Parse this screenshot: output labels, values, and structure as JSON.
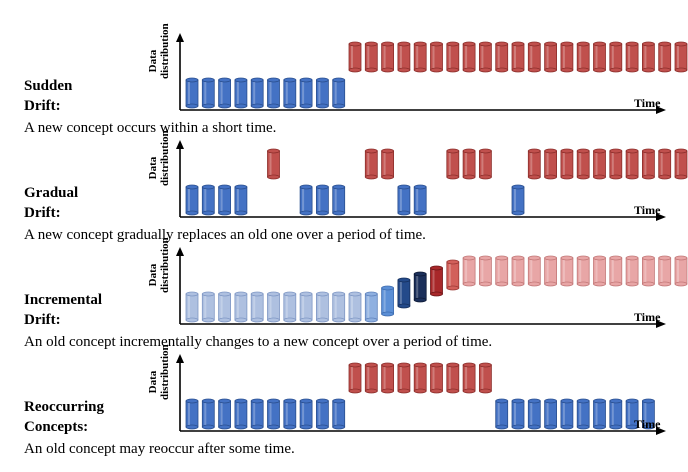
{
  "axis": {
    "ylabel_line1": "Data",
    "ylabel_line2": "distribution",
    "xlabel": "Time"
  },
  "colors": {
    "blue": "#4472c4",
    "blue_dark": "#2a4f8f",
    "red": "#c0504d",
    "red_dark": "#8c2e2b",
    "light_blue": "#aec0e0",
    "mid_blue1": "#8fb0e0",
    "mid_blue2": "#5b8fd6",
    "navy1": "#244a8a",
    "navy2": "#1b2f5a",
    "dark_red": "#a8282a",
    "mid_red": "#d2605a",
    "light_red": "#e8a6a6"
  },
  "panels": [
    {
      "title_line1": "Sudden",
      "title_line2": "Drift:",
      "description": "A new concept occurs within a short time.",
      "pattern": "0,0,0,0,0,0,0,0,0,0,1,1,1,1,1,1,1,1,1,1,1,1,1,1,1,1,1,1,1,1,1,1,1"
    },
    {
      "title_line1": "Gradual",
      "title_line2": "Drift:",
      "description": "A new concept gradually replaces an old one over a period of time.",
      "pattern": "0,0,0,0,_,1,_,0,0,0,_,1,1,0,0,_,1,1,1,_,0,1,1,1,1,1,1,1,1,1,1,1,1"
    },
    {
      "title_line1": "Incremental",
      "title_line2": "Drift:",
      "description": "An old concept incrementally changes to a new concept over a period of time.",
      "pattern": "l,l,l,l,l,l,l,l,l,l,l,a,b,c,d,e,f,g,r,r,r,r,r,r,r,r,r,r,r,r,r,r,r"
    },
    {
      "title_line1": "Reoccurring",
      "title_line2": "Concepts:",
      "description": "An old concept may reoccur after some time.",
      "pattern": "0,0,0,0,0,0,0,0,0,0,1,1,1,1,1,1,1,1,1,0,0,0,0,0,0,0,0,0,0,_,_,_,_"
    }
  ]
}
